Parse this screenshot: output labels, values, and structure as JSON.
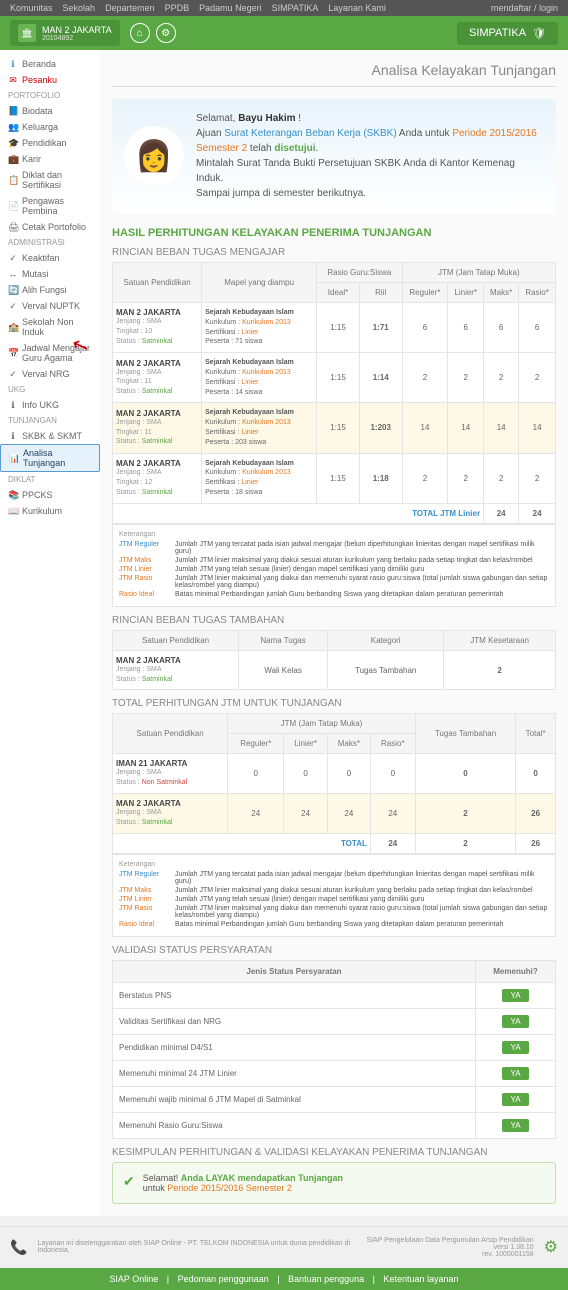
{
  "topbar": {
    "items": [
      "Komunitas",
      "Sekolah",
      "Departemen",
      "PPDB",
      "Padamu Negeri",
      "SIMPATIKA",
      "Layanan Kami"
    ],
    "right": "mendaftar / login"
  },
  "header": {
    "school": "MAN 2 JAKARTA",
    "code": "20104892",
    "btn": "SIMPATIKA"
  },
  "sidebar": {
    "beranda": "Beranda",
    "pesanku": "Pesanku",
    "sections": [
      {
        "title": "Portofolio",
        "items": [
          {
            "icon": "📘",
            "label": "Biodata"
          },
          {
            "icon": "👥",
            "label": "Keluarga"
          },
          {
            "icon": "🎓",
            "label": "Pendidikan"
          },
          {
            "icon": "💼",
            "label": "Karir"
          },
          {
            "icon": "📋",
            "label": "Diklat dan Sertifikasi"
          },
          {
            "icon": "📄",
            "label": "Pengawas Pembina"
          },
          {
            "icon": "🖨",
            "label": "Cetak Portofolio"
          }
        ]
      },
      {
        "title": "Administrasi",
        "items": [
          {
            "icon": "✓",
            "label": "Keaktifan"
          },
          {
            "icon": "↔",
            "label": "Mutasi"
          },
          {
            "icon": "🔄",
            "label": "Alih Fungsi"
          },
          {
            "icon": "✓",
            "label": "Verval NUPTK"
          },
          {
            "icon": "🏫",
            "label": "Sekolah Non Induk"
          },
          {
            "icon": "📅",
            "label": "Jadwal Mengajar Guru Agama"
          },
          {
            "icon": "✓",
            "label": "Verval NRG"
          }
        ]
      },
      {
        "title": "UKG",
        "items": [
          {
            "icon": "ℹ",
            "label": "Info UKG"
          }
        ]
      },
      {
        "title": "Tunjangan",
        "items": [
          {
            "icon": "ℹ",
            "label": "SKBK & SKMT"
          },
          {
            "icon": "📊",
            "label": "Analisa Tunjangan",
            "active": true
          }
        ]
      },
      {
        "title": "Diklat",
        "items": [
          {
            "icon": "📚",
            "label": "PPCKS"
          },
          {
            "icon": "📖",
            "label": "Kurikulum"
          }
        ]
      }
    ]
  },
  "page_title": "Analisa Kelayakan Tunjangan",
  "welcome": {
    "greeting": "Selamat,",
    "name": "Bayu Hakim",
    "line1a": "Ajuan",
    "line1b": "Surat Keterangan Beban Kerja (SKBK)",
    "line1c": "Anda untuk",
    "line1d": "Periode 2015/2016 Semester 2",
    "line1e": "telah",
    "line1f": "disetujui",
    "line2": "Mintalah Surat Tanda Bukti Persetujuan SKBK Anda di Kantor Kemenag Induk.",
    "line3": "Sampai jumpa di semester berikutnya."
  },
  "hasil_title": "HASIL PERHITUNGAN KELAYAKAN PENERIMA TUNJANGAN",
  "rincian1": {
    "title": "RINCIAN BEBAN TUGAS MENGAJAR",
    "headers": {
      "h1": "Satuan Pendidikan",
      "h2": "Mapel yang diampu",
      "h3": "Rasio Guru:Siswa",
      "h4": "JTM (Jam Tatap Muka)",
      "sub": [
        "Ideal*",
        "Riil",
        "Reguler*",
        "Linier*",
        "Maks*",
        "Rasio*"
      ]
    },
    "rows": [
      {
        "school": "MAN 2 JAKARTA",
        "jenjang": "SMA",
        "tingkat": "10",
        "status": "Satminkal",
        "mapel": "Sejarah Kebudayaan Islam",
        "kur": "Kurikulum 2013",
        "sert": "Linier",
        "peserta": "71 siswa",
        "ideal": "1:15",
        "riil": "1:71",
        "reg": "6",
        "lin": "6",
        "maks": "6",
        "rasio": "6"
      },
      {
        "school": "MAN 2 JAKARTA",
        "jenjang": "SMA",
        "tingkat": "11",
        "status": "Satminkal",
        "mapel": "Sejarah Kebudayaan Islam",
        "kur": "Kurikulum 2013",
        "sert": "Linier",
        "peserta": "14 siswa",
        "ideal": "1:15",
        "riil": "1:14",
        "reg": "2",
        "lin": "2",
        "maks": "2",
        "rasio": "2"
      },
      {
        "school": "MAN 2 JAKARTA",
        "jenjang": "SMA",
        "tingkat": "11",
        "status": "Satminkal",
        "mapel": "Sejarah Kebudayaan Islam",
        "kur": "Kurikulum 2013",
        "sert": "Linier",
        "peserta": "203 siswa",
        "ideal": "1:15",
        "riil": "1:203",
        "reg": "14",
        "lin": "14",
        "maks": "14",
        "rasio": "14",
        "hl": true
      },
      {
        "school": "MAN 2 JAKARTA",
        "jenjang": "SMA",
        "tingkat": "12",
        "status": "Satminkal",
        "mapel": "Sejarah Kebudayaan Islam",
        "kur": "Kurikulum 2013",
        "sert": "Linier",
        "peserta": "18 siswa",
        "ideal": "1:15",
        "riil": "1:18",
        "reg": "2",
        "lin": "2",
        "maks": "2",
        "rasio": "2"
      }
    ],
    "total_label": "TOTAL JTM Linier",
    "total_maks": "24",
    "total_rasio": "24"
  },
  "ket1": {
    "title": "Keterangan",
    "rows": [
      {
        "l": "JTM Reguler",
        "c": "link-blue",
        "t": "Jumlah JTM yang tercatat pada isian jadwal mengajar (belum diperhitungkan linieritas dengan mapel sertifikasi milik guru)"
      },
      {
        "l": "JTM Maks",
        "c": "link-orange",
        "t": "Jumlah JTM linier maksimal yang diakui sesuai aturan kurikulum yang berlaku pada setiap tingkat dan kelas/rombel"
      },
      {
        "l": "JTM Linier",
        "c": "link-orange",
        "t": "Jumlah JTM yang telah sesuai (linier) dengan mapel sertifikasi yang dimiliki guru"
      },
      {
        "l": "JTM Rasio",
        "c": "link-orange",
        "t": "Jumlah JTM linier maksimal yang diakui dan memenuhi syarat rasio guru:siswa (total jumlah siswa gabungan dan setiap kelas/rombel yang diampu)"
      },
      {
        "l": "Rasio Ideal",
        "c": "link-orange",
        "t": "Batas minimal Perbandingan jumlah Guru berbanding Siswa yang ditetapkan dalam peraturan pemerintah"
      }
    ]
  },
  "rincian2": {
    "title": "RINCIAN BEBAN TUGAS TAMBAHAN",
    "headers": [
      "Satuan Pendidikan",
      "Nama Tugas",
      "Kategori",
      "JTM Kesetaraan"
    ],
    "row": {
      "school": "MAN 2 JAKARTA",
      "jenjang": "SMA",
      "status": "Satminkal",
      "nama": "Wali Kelas",
      "kat": "Tugas Tambahan",
      "jtm": "2"
    }
  },
  "total_perhitungan": {
    "title": "TOTAL PERHITUNGAN JTM UNTUK TUNJANGAN",
    "headers": {
      "h1": "Satuan Pendidikan",
      "h2": "JTM (Jam Tatap Muka)",
      "h3": "Tugas Tambahan",
      "h4": "Total*",
      "sub": [
        "Reguler*",
        "Linier*",
        "Maks*",
        "Rasio*"
      ]
    },
    "rows": [
      {
        "school": "IMAN 21 JAKARTA",
        "jenjang": "SMA",
        "status": "Non Satminkal",
        "reg": "0",
        "lin": "0",
        "maks": "0",
        "rasio": "0",
        "tt": "0",
        "tot": "0"
      },
      {
        "school": "MAN 2 JAKARTA",
        "jenjang": "SMA",
        "status": "Satminkal",
        "reg": "24",
        "lin": "24",
        "maks": "24",
        "rasio": "24",
        "tt": "2",
        "tot": "26",
        "hl": true
      }
    ],
    "total_label": "TOTAL",
    "t_rasio": "24",
    "t_tt": "2",
    "t_tot": "26"
  },
  "validasi": {
    "title": "VALIDASI STATUS PERSYARATAN",
    "headers": [
      "Jenis Status Persyaratan",
      "Memenuhi?"
    ],
    "rows": [
      "Berstatus PNS",
      "Validitas Sertifikasi dan NRG",
      "Pendidikan minimal D4/S1",
      "Memenuhi minimal 24 JTM Linier",
      "Memenuhi wajib minimal 6 JTM Mapel di Satminkal",
      "Memenuhi Rasio Guru:Siswa"
    ],
    "ya": "YA"
  },
  "kesimpulan": {
    "title": "KESIMPULAN PERHITUNGAN & VALIDASI KELAYAKAN PENERIMA TUNJANGAN",
    "text1": "Selamat!",
    "text2": "Anda LAYAK mendapatkan Tunjangan",
    "text3": "untuk",
    "text4": "Periode 2015/2016 Semester 2"
  },
  "footer": {
    "left": "Layanan ini diselenggarakan oleh SIAP Online - PT. TELKOM INDONESIA untuk dunia pendidikan di Indonesia.",
    "right1": "SIAP Pengelolaan Data Pergumulan Arsip Pendidikan",
    "right2": "versi 1.38.10",
    "right3": "rev. 1000001158"
  },
  "footer_links": [
    "SIAP Online",
    "Pedoman penggunaan",
    "Bantuan pengguna",
    "Ketentuan layanan"
  ]
}
